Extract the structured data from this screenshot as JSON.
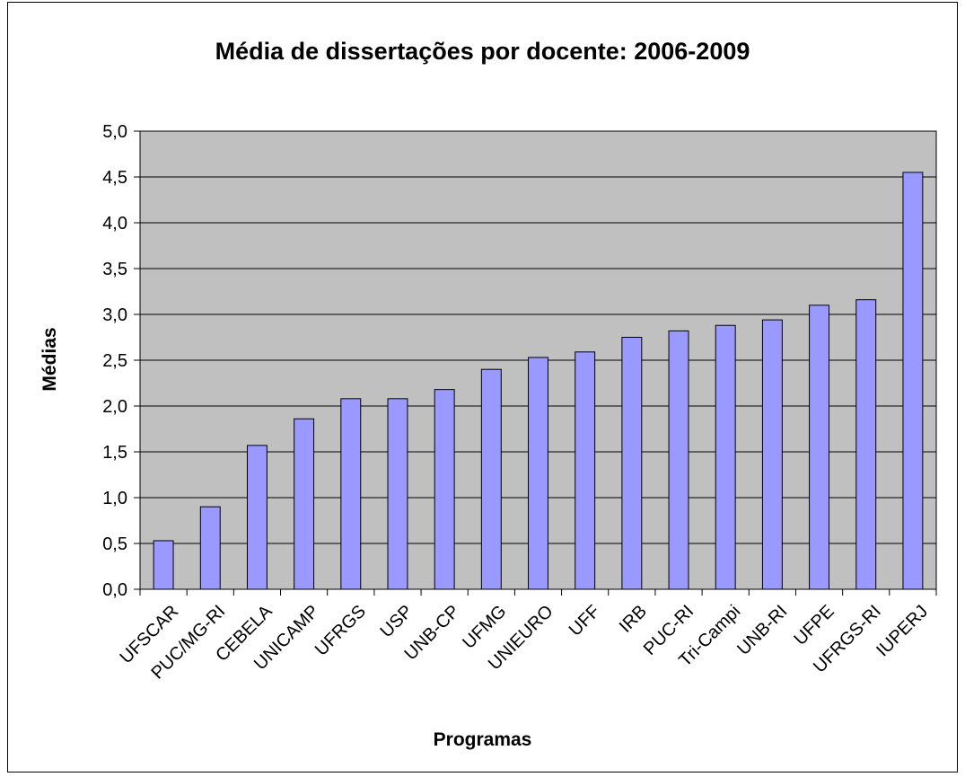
{
  "chart_data": {
    "type": "bar",
    "title": "Média de dissertações por docente: 2006-2009",
    "xlabel": "Programas",
    "ylabel": "Médias",
    "categories": [
      "UFSCAR",
      "PUC/MG-RI",
      "CEBELA",
      "UNICAMP",
      "UFRGS",
      "USP",
      "UNB-CP",
      "UFMG",
      "UNIEURO",
      "UFF",
      "IRB",
      "PUC-RI",
      "Tri-Campi",
      "UNB-RI",
      "UFPE",
      "UFRGS-RI",
      "IUPERJ"
    ],
    "values": [
      0.53,
      0.9,
      1.57,
      1.86,
      2.08,
      2.08,
      2.18,
      2.4,
      2.53,
      2.59,
      2.75,
      2.82,
      2.88,
      2.94,
      3.1,
      3.16,
      4.55
    ],
    "ylim": [
      0,
      5
    ],
    "yticks": [
      "0,0",
      "0,5",
      "1,0",
      "1,5",
      "2,0",
      "2,5",
      "3,0",
      "3,5",
      "4,0",
      "4,5",
      "5,0"
    ],
    "grid": true,
    "legend": "none",
    "colors": {
      "bar_fill": "#9999ff",
      "bar_stroke": "#000000",
      "plot_background": "#c0c0c0",
      "gridline": "#000000"
    }
  }
}
